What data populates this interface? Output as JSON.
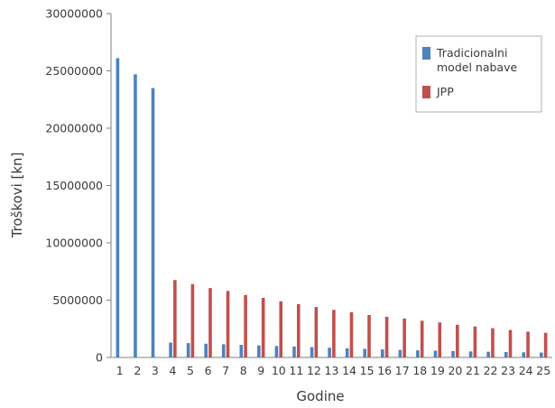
{
  "chart_data": {
    "type": "bar",
    "title": "",
    "xlabel": "Godine",
    "ylabel": "Troškovi [kn]",
    "ylim": [
      0,
      30000000
    ],
    "yticks": [
      "0",
      "5000000",
      "10000000",
      "15000000",
      "20000000",
      "25000000",
      "30000000"
    ],
    "ytick_values": [
      0,
      5000000,
      10000000,
      15000000,
      20000000,
      25000000,
      30000000
    ],
    "grid": false,
    "legend_position": "top-right",
    "categories": [
      "1",
      "2",
      "3",
      "4",
      "5",
      "6",
      "7",
      "8",
      "9",
      "10",
      "11",
      "12",
      "13",
      "14",
      "15",
      "16",
      "17",
      "18",
      "19",
      "20",
      "21",
      "22",
      "23",
      "24",
      "25"
    ],
    "series": [
      {
        "name": "Tradicionalni model nabave",
        "legend_lines": [
          "Tradicionalni",
          "model nabave"
        ],
        "color": "#4f81bd",
        "values": [
          26100000,
          24700000,
          23500000,
          1300000,
          1250000,
          1200000,
          1150000,
          1100000,
          1050000,
          1000000,
          950000,
          900000,
          850000,
          800000,
          750000,
          700000,
          650000,
          620000,
          590000,
          560000,
          530000,
          500000,
          470000,
          450000,
          430000
        ]
      },
      {
        "name": "JPP",
        "legend_lines": [
          "JPP"
        ],
        "color": "#c0504d",
        "values": [
          0,
          0,
          0,
          6750000,
          6400000,
          6050000,
          5800000,
          5450000,
          5200000,
          4900000,
          4650000,
          4400000,
          4150000,
          3950000,
          3700000,
          3550000,
          3400000,
          3200000,
          3050000,
          2850000,
          2700000,
          2550000,
          2400000,
          2250000,
          2150000
        ]
      }
    ]
  }
}
